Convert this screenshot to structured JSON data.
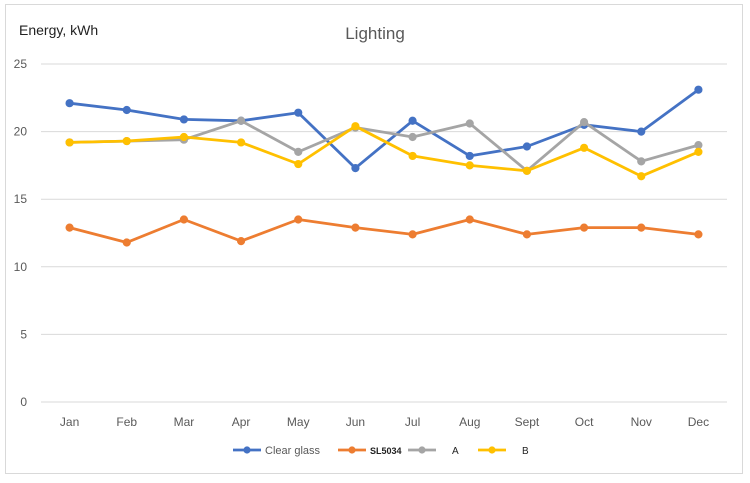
{
  "chart_data": {
    "type": "line",
    "title": "Lighting",
    "ylabel": "Energy, kWh",
    "xlabel": "",
    "ylim": [
      0,
      25
    ],
    "yticks": [
      0,
      5,
      10,
      15,
      20,
      25
    ],
    "grid": "horizontal",
    "legend_position": "bottom",
    "categories": [
      "Jan",
      "Feb",
      "Mar",
      "Apr",
      "May",
      "Jun",
      "Jul",
      "Aug",
      "Sept",
      "Oct",
      "Nov",
      "Dec"
    ],
    "series": [
      {
        "name": "Clear glass",
        "color": "#4472c4",
        "values": [
          22.1,
          21.6,
          20.9,
          20.8,
          21.4,
          17.3,
          20.8,
          18.2,
          18.9,
          20.5,
          20.0,
          23.1
        ]
      },
      {
        "name": "SL5034",
        "color": "#ed7d31",
        "values": [
          12.9,
          11.8,
          13.5,
          11.9,
          13.5,
          12.9,
          12.4,
          13.5,
          12.4,
          12.9,
          12.9,
          12.4
        ]
      },
      {
        "name": "A",
        "color": "#a5a5a5",
        "values": [
          19.2,
          19.3,
          19.4,
          20.8,
          18.5,
          20.3,
          19.6,
          20.6,
          17.1,
          20.7,
          17.8,
          19.0
        ]
      },
      {
        "name": "B",
        "color": "#ffc000",
        "values": [
          19.2,
          19.3,
          19.6,
          19.2,
          17.6,
          20.4,
          18.2,
          17.5,
          17.1,
          18.8,
          16.7,
          18.5
        ]
      }
    ]
  }
}
